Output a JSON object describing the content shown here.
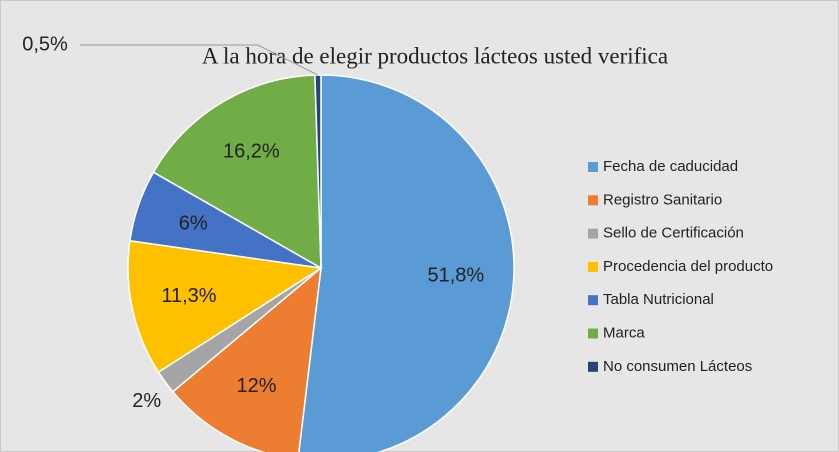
{
  "chart_data": {
    "type": "pie",
    "title": "A la hora de elegir productos lácteos usted verifica",
    "categories": [
      "Fecha de caducidad",
      "Registro Sanitario",
      "Sello de Certificación",
      "Procedencia del producto",
      "Tabla Nutricional",
      "Marca",
      "No consumen Lácteos"
    ],
    "values": [
      51.8,
      12,
      2,
      11.3,
      6,
      16.2,
      0.5
    ],
    "value_labels": [
      "51,8%",
      "12%",
      "2%",
      "11,3%",
      "6%",
      "16,2%",
      "0,5%"
    ],
    "colors": [
      "#5b9bd5",
      "#ed7d31",
      "#a5a5a5",
      "#ffc000",
      "#4472c4",
      "#70ad47",
      "#264478"
    ],
    "legend": "right"
  }
}
